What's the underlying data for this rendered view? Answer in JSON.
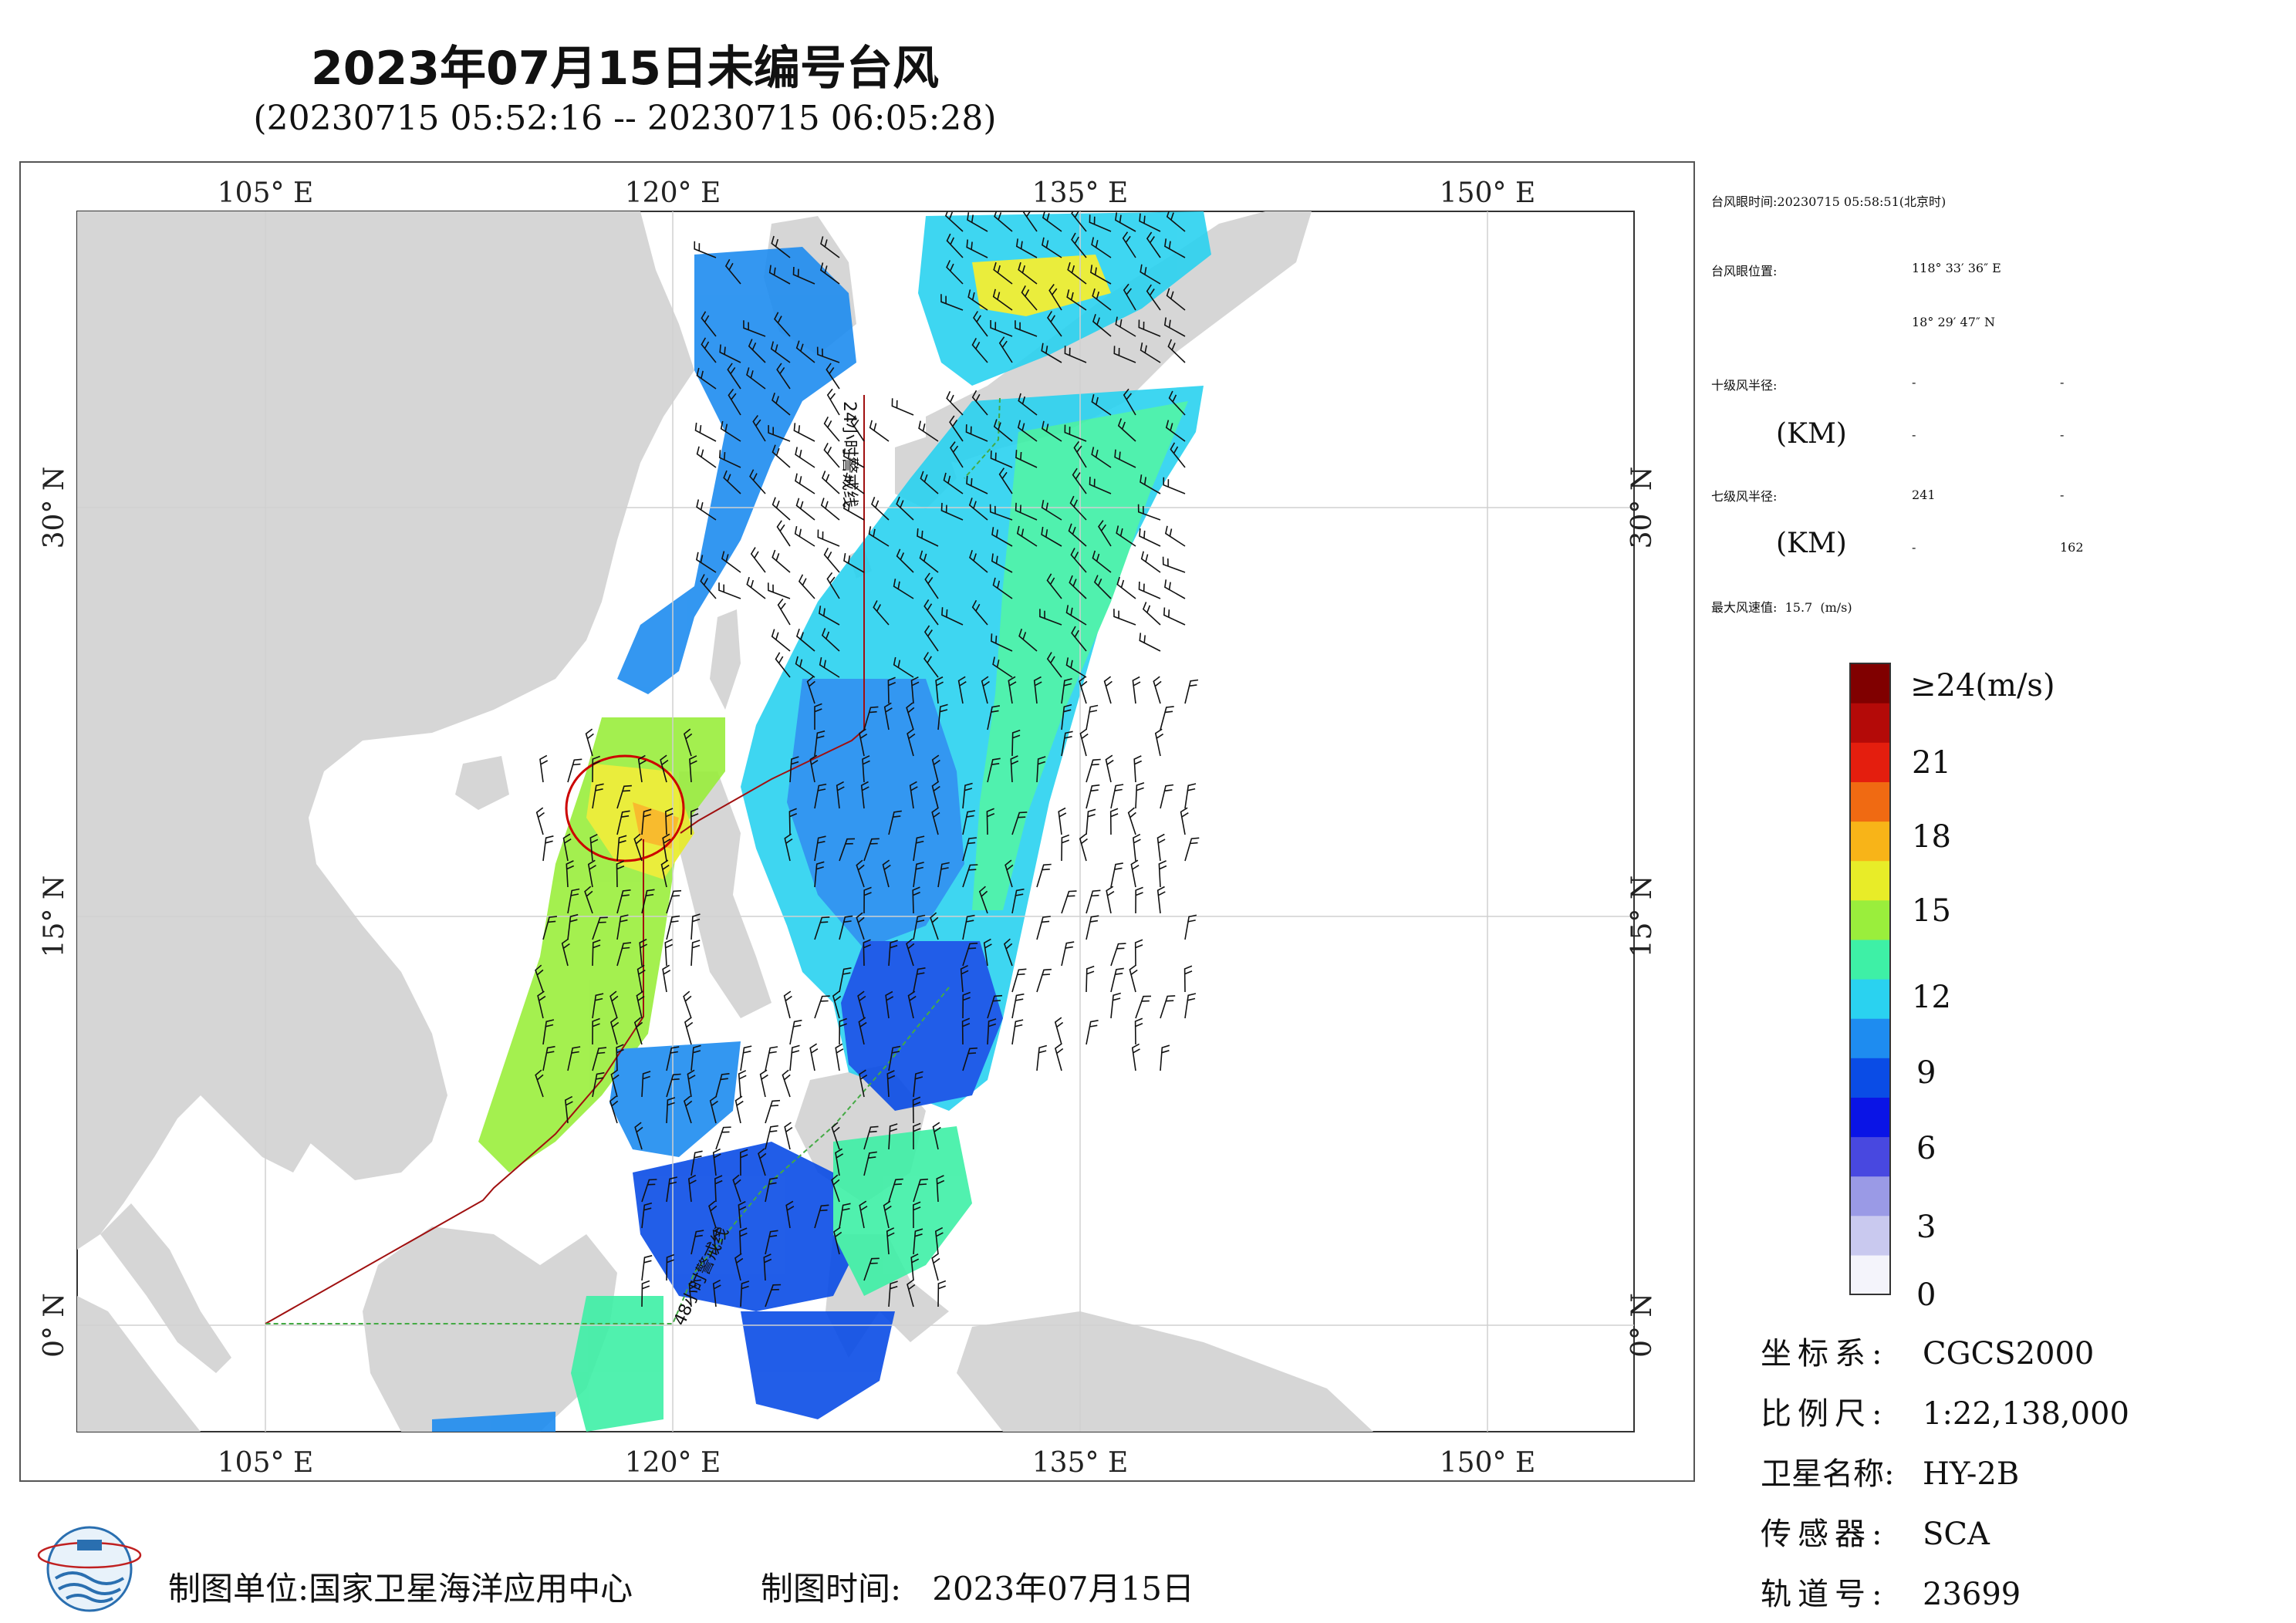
{
  "title": "2023年07月15日未编号台风",
  "subtitle": "(20230715 05:52:16 -- 20230715 06:05:28)",
  "map": {
    "lon_ticks": [
      "105° E",
      "120° E",
      "135° E",
      "150° E"
    ],
    "lat_ticks": [
      "30° N",
      "15° N",
      "0° N"
    ],
    "track_labels": [
      "24小时警戒线",
      "48小时警戒线"
    ]
  },
  "eye": {
    "time_label": "台风眼时间:",
    "time_value": "20230715 05:58:51(北京时)",
    "pos_label": "台风眼位置:",
    "lon": "118° 33′ 36″ E",
    "lat": "18° 29′ 47″ N"
  },
  "radius": {
    "r10_label": "十级风半径:",
    "r10_unit": "(KM)",
    "r10_values": [
      "-",
      "-",
      "-",
      "-"
    ],
    "r7_label": "七级风半径:",
    "r7_unit": "(KM)",
    "r7_values": [
      "241",
      "-",
      "-",
      "162"
    ]
  },
  "max_wind": {
    "label": "最大风速值:",
    "value": "15.7",
    "unit": "(m/s)"
  },
  "colorbar": {
    "top_label": "≥24(m/s)",
    "ticks": [
      "21",
      "18",
      "15",
      "12",
      "9",
      "6",
      "3",
      "0"
    ],
    "colors": [
      "#f4f4fb",
      "#c9c9ef",
      "#9a9ae6",
      "#4848e0",
      "#0a14e6",
      "#0a4ce6",
      "#1e8cf0",
      "#2ad2f0",
      "#3ef0a6",
      "#9aee3c",
      "#e8ec28",
      "#f8b418",
      "#f06a12",
      "#e41e0e",
      "#b40a08",
      "#800000"
    ]
  },
  "meta": {
    "crs_label": "坐标系:",
    "crs_value": "CGCS2000",
    "scale_label": "比例尺:",
    "scale_value": "1:22,138,000",
    "sat_label": "卫星名称:",
    "sat_value": "HY-2B",
    "sensor_label": "传感器:",
    "sensor_value": "SCA",
    "orbit_label": "轨道号:",
    "orbit_value": "23699"
  },
  "footer": {
    "unit_label": "制图单位:",
    "unit_value": "国家卫星海洋应用中心",
    "time_label": "制图时间:",
    "time_value": "2023年07月15日"
  }
}
